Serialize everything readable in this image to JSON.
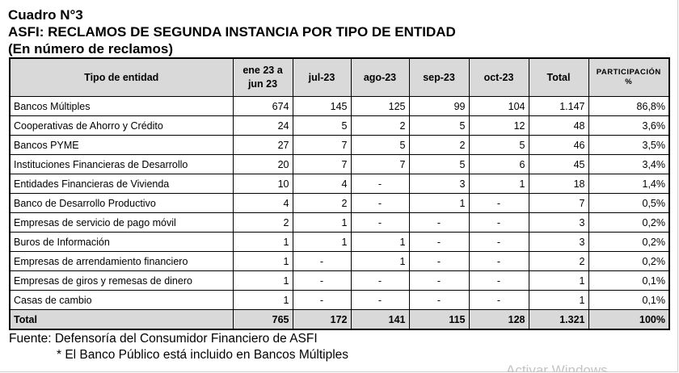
{
  "header": {
    "title1": "Cuadro N°3",
    "title2": "ASFI: RECLAMOS DE SEGUNDA INSTANCIA POR TIPO DE ENTIDAD",
    "title3": "(En número de reclamos)"
  },
  "table": {
    "columns": [
      "Tipo de entidad",
      "ene 23 a jun 23",
      "jul-23",
      "ago-23",
      "sep-23",
      "oct-23",
      "Total",
      "PARTICIPACIÓN %"
    ],
    "rows": [
      [
        "Bancos Múltiples",
        "674",
        "145",
        "125",
        "99",
        "104",
        "1.147",
        "86,8%"
      ],
      [
        "Cooperativas de Ahorro y Crédito",
        "24",
        "5",
        "2",
        "5",
        "12",
        "48",
        "3,6%"
      ],
      [
        "Bancos PYME",
        "27",
        "7",
        "5",
        "2",
        "5",
        "46",
        "3,5%"
      ],
      [
        "Instituciones Financieras de Desarrollo",
        "20",
        "7",
        "7",
        "5",
        "6",
        "45",
        "3,4%"
      ],
      [
        "Entidades Financieras de Vivienda",
        "10",
        "4",
        "-",
        "3",
        "1",
        "18",
        "1,4%"
      ],
      [
        "Banco de Desarrollo Productivo",
        "4",
        "2",
        "-",
        "1",
        "-",
        "7",
        "0,5%"
      ],
      [
        "Empresas de servicio de pago móvil",
        "2",
        "1",
        "-",
        "-",
        "-",
        "3",
        "0,2%"
      ],
      [
        "Buros de Información",
        "1",
        "1",
        "1",
        "-",
        "-",
        "3",
        "0,2%"
      ],
      [
        "Empresas de arrendamiento financiero",
        "1",
        "-",
        "1",
        "-",
        "-",
        "2",
        "0,2%"
      ],
      [
        "Empresas de giros y remesas de dinero",
        "1",
        "-",
        "-",
        "-",
        "-",
        "1",
        "0,1%"
      ],
      [
        "Casas de cambio",
        "1",
        "-",
        "-",
        "-",
        "-",
        "1",
        "0,1%"
      ]
    ],
    "total": [
      "Total",
      "765",
      "172",
      "141",
      "115",
      "128",
      "1.321",
      "100%"
    ]
  },
  "footer": {
    "source": "Fuente: Defensoría del Consumidor Financiero de ASFI",
    "note": "* El Banco Público está incluido en Bancos Múltiples",
    "watermark": "Activar Windows"
  }
}
